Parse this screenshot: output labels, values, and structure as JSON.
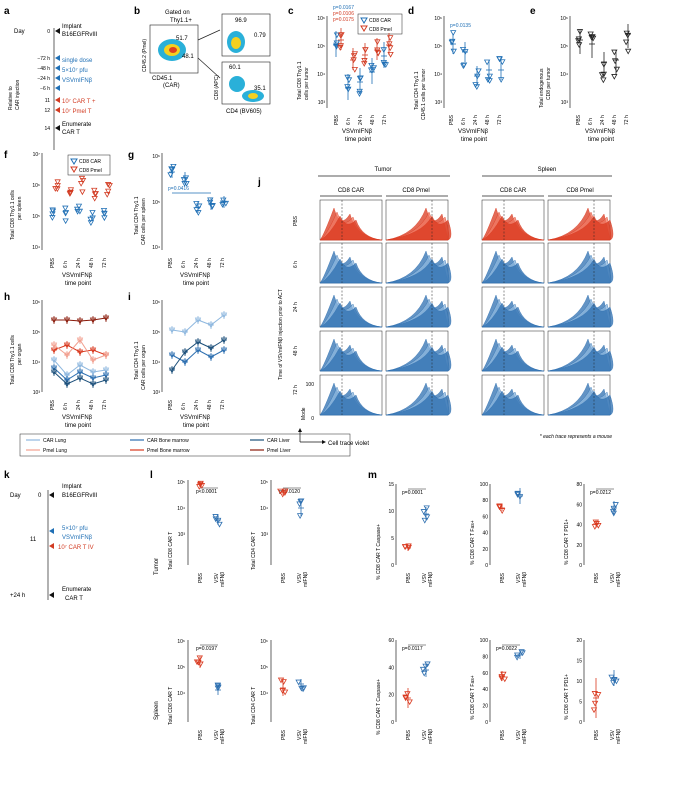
{
  "colors": {
    "blue": "#2d6fb0",
    "red": "#d9381e",
    "lightblue": "#8fb8df",
    "lightred": "#f2a090",
    "darkblue": "#1b4f7a",
    "darkred": "#8a1a0a",
    "pval": "#1f6fb5"
  },
  "panel_a": {
    "letter": "a",
    "day_label": "Day",
    "rotated_label_1": "Relative to",
    "rotated_label_2": "CAR injection",
    "rows": [
      {
        "t": "0",
        "text": "Implant",
        "text2": "B16EGFRvIII"
      },
      {
        "t": "−72 h",
        "text": "single dose"
      },
      {
        "t": "−48 h",
        "text": "5×10⁷ pfu"
      },
      {
        "t": "−24 h",
        "text": "VSVmIFNβ"
      },
      {
        "t": "−6 h",
        "text": ""
      },
      {
        "t": "11",
        "text": "10⁷ CAR T +"
      },
      {
        "t": "12",
        "text": "10⁷ Pmel T"
      },
      {
        "t": "14",
        "text": "Enumerate",
        "text2": "CAR T"
      }
    ]
  },
  "panel_b": {
    "letter": "b",
    "gate": "Gated on",
    "gate2": "Thy1.1+",
    "y1": "CD45.2 (Pmel)",
    "x1": "CD45.1",
    "x1b": "(CAR)",
    "q1": "51.7",
    "q2": "48.1",
    "y2": "CD8 (APC)",
    "x2": "CD4 (BV605)",
    "r1a": "96.9",
    "r1b": "0.79",
    "r2a": "60.1",
    "r2b": "35.1"
  },
  "panel_c": {
    "letter": "c",
    "ylabel": "Total CD8 Thy1.1",
    "ylabel2": "cells per tumor",
    "p1": "p=0.0167",
    "p2": "p=0.0106",
    "p3": "p=0.0175",
    "legend1": "CD8 CAR",
    "legend2": "CD8 Pmel"
  },
  "panel_d": {
    "letter": "d",
    "ylabel": "Total CD4 Thy1.1",
    "ylabel2": "CD45.1 cells per tumor",
    "p1": "p=0.0135"
  },
  "panel_e": {
    "letter": "e",
    "ylabel": "Total endogenous",
    "ylabel2": "CD8 per tumor"
  },
  "panel_f": {
    "letter": "f",
    "ylabel": "Total CD8 Thy1.1 cells",
    "ylabel2": "per spleen",
    "legend1": "CD8 CAR",
    "legend2": "CD8 Pmel"
  },
  "panel_g": {
    "letter": "g",
    "ylabel": "Total CD4 Thy1.1",
    "ylabel2": "CAR cells per spleen",
    "p1": "p=0.0416"
  },
  "panel_h": {
    "letter": "h",
    "ylabel": "Total CD8 Thy1.1 cells",
    "ylabel2": "per organ"
  },
  "panel_i": {
    "letter": "i",
    "ylabel": "Total CD4 Thy1.1",
    "ylabel2": "CAR cells per organ"
  },
  "panel_j": {
    "letter": "j",
    "tumor": "Tumor",
    "spleen": "Spleen",
    "col1": "CD8 CAR",
    "col2": "CD8 Pmel",
    "col3": "CD8 CAR",
    "col4": "CD8 Pmel",
    "rows": [
      "PBS",
      "6 h",
      "24 h",
      "48 h",
      "72 h"
    ],
    "ylabel": "Time of VSVmIFNβ injection prior to ACT",
    "mode": "Mode",
    "mode100": "100",
    "mode0": "0",
    "xlabel": "Cell trace violet",
    "note": "* each trace represents a mouse"
  },
  "xticks": [
    "PBS",
    "6 h",
    "24 h",
    "48 h",
    "72 h"
  ],
  "xtitle1": "VSVmIFNβ",
  "xtitle2": "time point",
  "yticks": {
    "e3": "10³",
    "e4": "10⁴",
    "e5": "10⁵",
    "e6": "10⁶",
    "e7": "10⁷"
  },
  "legend_hi": [
    {
      "label": "CAR Lung"
    },
    {
      "label": "CAR Bone marrow"
    },
    {
      "label": "CAR Liver"
    },
    {
      "label": "Pmel Lung"
    },
    {
      "label": "Pmel Bone marrow"
    },
    {
      "label": "Pmel Liver"
    }
  ],
  "panel_k": {
    "letter": "k",
    "day": "Day",
    "d0": "0",
    "d11": "11",
    "implant": "Implant",
    "implant2": "B16EGFRvIII",
    "dose1": "5×10⁷ pfu",
    "dose2": "VSVmIFNβ",
    "cart": "10⁷ CAR T IV",
    "t24": "+24 h",
    "enum1": "Enumerate",
    "enum2": "CAR T"
  },
  "panel_l": {
    "letter": "l",
    "tumor": "Tumor",
    "spleen": "Spleen",
    "plots": [
      {
        "ylabel": "Total CD8 CAR T",
        "p": "p<0.0001"
      },
      {
        "ylabel": "Total CD4 CAR T",
        "p": "p=0.0120"
      },
      {
        "ylabel": "Total CD8 CAR T",
        "p": "p=0.0197"
      },
      {
        "ylabel": "Total CD4 CAR T",
        "p": ""
      }
    ]
  },
  "panel_m": {
    "letter": "m",
    "plots": [
      {
        "ylabel": "% CD8 CAR T Caspase+",
        "p": "p=0.0001",
        "ticks": [
          "0",
          "5",
          "10",
          "15"
        ]
      },
      {
        "ylabel": "% CD8 CAR T Fas+",
        "p": "",
        "ticks": [
          "0",
          "20",
          "40",
          "60",
          "80",
          "100"
        ]
      },
      {
        "ylabel": "% CD8 CAR T PD1+",
        "p": "p=0.0212",
        "ticks": [
          "0",
          "20",
          "40",
          "60",
          "80"
        ]
      },
      {
        "ylabel": "% CD8 CAR T Caspase+",
        "p": "p=0.0117",
        "ticks": [
          "0",
          "20",
          "40",
          "60"
        ]
      },
      {
        "ylabel": "% CD8 CAR T Fas+",
        "p": "p=0.0022",
        "ticks": [
          "0",
          "20",
          "40",
          "60",
          "80",
          "100"
        ]
      },
      {
        "ylabel": "% CD8 CAR T PD1+",
        "p": "",
        "ticks": [
          "0",
          "5",
          "10",
          "15",
          "20"
        ]
      }
    ]
  },
  "lm_xticks": {
    "pbs": "PBS",
    "vsv1": "VSV",
    "vsv2": "mIFNβ"
  }
}
